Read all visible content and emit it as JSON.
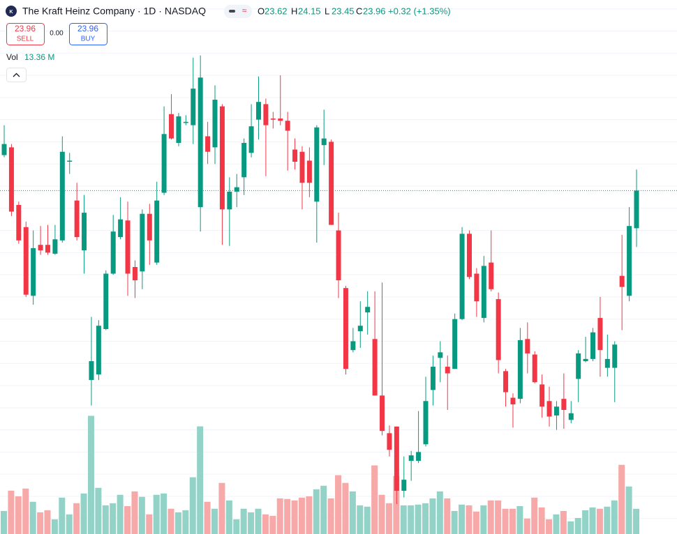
{
  "chart_data": {
    "type": "candlestick",
    "title": "The Kraft Heinz Company · 1D · NASDAQ",
    "ohlc_letters": [
      "O",
      "H",
      "L",
      "C"
    ],
    "change": "+0.32 (+1.35%)",
    "sell_label": "SELL",
    "buy_label": "BUY",
    "spread": "0.00",
    "volume_title": "Vol",
    "last_volume_label": "13.36 M",
    "open": [
      24.28,
      24.35,
      23.83,
      23.63,
      23.01,
      23.47,
      23.47,
      23.39,
      23.51,
      24.22,
      23.87,
      23.42,
      22.25,
      22.3,
      22.71,
      23.21,
      23.54,
      23.69,
      23.27,
      23.23,
      23.75,
      23.31,
      23.94,
      24.65,
      24.39,
      24.57,
      24.55,
      23.81,
      24.45,
      24.35,
      24.72,
      23.79,
      23.95,
      24.08,
      24.3,
      24.6,
      24.74,
      24.61,
      24.61,
      24.59,
      24.33,
      24.31,
      24.23,
      23.86,
      24.37,
      24.4,
      23.6,
      23.08,
      22.52,
      22.69,
      22.86,
      22.62,
      22.11,
      21.77,
      21.83,
      21.25,
      21.52,
      21.52,
      21.67,
      22.16,
      22.45,
      22.37,
      22.35,
      22.8,
      23.57,
      23.21,
      22.81,
      23.31,
      22.98,
      22.33,
      22.09,
      22.08,
      22.62,
      22.48,
      22.21,
      22.06,
      21.93,
      22.08,
      21.89,
      22.26,
      22.42,
      22.44,
      22.81,
      22.36,
      22.36,
      23.19,
      23.01,
      23.62
    ],
    "high": [
      24.55,
      24.38,
      23.86,
      23.68,
      23.6,
      23.64,
      23.65,
      23.65,
      24.45,
      24.3,
      24.03,
      23.92,
      22.82,
      22.79,
      23.24,
      23.74,
      23.9,
      23.86,
      23.33,
      23.79,
      23.84,
      24.04,
      24.72,
      24.83,
      24.66,
      24.64,
      25.16,
      25.18,
      24.58,
      24.91,
      24.74,
      24.08,
      24.11,
      24.43,
      24.74,
      24.99,
      24.79,
      24.67,
      25.0,
      24.67,
      24.43,
      24.36,
      24.35,
      24.55,
      24.69,
      24.42,
      23.76,
      23.1,
      22.72,
      22.96,
      23.05,
      23.05,
      23.13,
      21.84,
      21.83,
      21.56,
      21.61,
      21.97,
      22.28,
      22.47,
      22.6,
      22.47,
      22.85,
      23.63,
      23.6,
      23.26,
      23.37,
      23.6,
      23.04,
      22.35,
      22.13,
      22.72,
      22.77,
      22.51,
      22.3,
      22.19,
      22.06,
      22.31,
      22.06,
      22.52,
      22.64,
      22.72,
      23.0,
      22.66,
      22.6,
      23.56,
      23.81,
      24.15
    ],
    "low": [
      24.26,
      23.73,
      23.48,
      23.0,
      22.93,
      23.38,
      23.38,
      23.38,
      23.49,
      24.11,
      23.51,
      23.21,
      22.02,
      22.25,
      22.7,
      23.2,
      23.52,
      23.01,
      22.99,
      23.07,
      23.29,
      23.29,
      23.92,
      24.42,
      24.36,
      24.55,
      24.38,
      23.59,
      24.2,
      24.2,
      23.47,
      23.46,
      23.81,
      23.92,
      24.26,
      24.42,
      24.09,
      24.52,
      24.55,
      24.14,
      24.15,
      23.79,
      23.9,
      23.49,
      24.19,
      23.65,
      22.99,
      22.3,
      22.5,
      22.54,
      22.66,
      22.11,
      21.75,
      21.56,
      21.13,
      21.19,
      21.34,
      21.5,
      21.65,
      22.02,
      22.23,
      21.98,
      22.35,
      22.79,
      23.16,
      22.82,
      22.77,
      23.05,
      22.31,
      22.01,
      21.82,
      22.04,
      22.31,
      22.22,
      21.91,
      21.83,
      21.8,
      21.81,
      21.86,
      22.05,
      22.41,
      22.42,
      22.28,
      22.28,
      22.05,
      22.7,
      22.96,
      23.45
    ],
    "close": [
      24.38,
      23.77,
      23.51,
      23.02,
      23.44,
      23.42,
      23.4,
      23.52,
      24.31,
      24.23,
      23.54,
      23.76,
      22.42,
      22.74,
      23.21,
      23.59,
      23.7,
      23.21,
      23.15,
      23.75,
      23.51,
      23.87,
      24.47,
      24.43,
      24.63,
      24.58,
      24.88,
      24.98,
      24.31,
      24.78,
      23.79,
      23.95,
      23.99,
      24.39,
      24.54,
      24.76,
      24.55,
      24.6,
      24.59,
      24.5,
      24.22,
      24.03,
      24.03,
      24.53,
      24.43,
      23.65,
      23.15,
      22.35,
      22.6,
      22.74,
      22.91,
      22.11,
      21.79,
      21.62,
      21.25,
      21.35,
      21.57,
      21.6,
      22.06,
      22.37,
      22.5,
      22.31,
      22.8,
      23.57,
      23.18,
      22.96,
      23.28,
      23.07,
      22.43,
      22.14,
      22.03,
      22.61,
      22.49,
      22.23,
      22.01,
      21.92,
      22.01,
      21.98,
      21.95,
      22.49,
      22.44,
      22.68,
      22.52,
      22.44,
      22.57,
      23.09,
      23.64,
      23.96
    ],
    "volume": [
      12.2,
      23.0,
      20.0,
      24.1,
      17.1,
      11.5,
      12.6,
      7.8,
      19.3,
      10.4,
      16.3,
      21.5,
      62.7,
      24.5,
      15.2,
      16.3,
      20.8,
      14.8,
      22.6,
      19.7,
      10.4,
      20.8,
      21.5,
      13.4,
      11.5,
      12.6,
      30.1,
      57.1,
      17.1,
      13.4,
      27.1,
      17.8,
      7.8,
      13.4,
      11.5,
      13.4,
      10.4,
      9.6,
      18.9,
      18.6,
      17.8,
      19.3,
      20.0,
      23.7,
      25.6,
      18.9,
      31.2,
      27.1,
      22.6,
      15.2,
      14.5,
      36.4,
      20.8,
      16.3,
      30.8,
      15.2,
      15.2,
      15.6,
      16.3,
      18.9,
      22.6,
      18.9,
      12.2,
      15.6,
      15.2,
      11.9,
      15.2,
      17.8,
      17.8,
      13.4,
      13.4,
      14.8,
      8.2,
      19.3,
      14.1,
      7.8,
      10.4,
      12.2,
      6.7,
      8.5,
      12.6,
      14.1,
      13.4,
      14.5,
      17.8,
      36.7,
      25.2,
      13.36
    ],
    "ylim": [
      20.86,
      25.68
    ],
    "yticks": [
      21.0,
      21.2,
      21.4,
      21.6,
      21.8,
      22.0,
      22.2,
      22.4,
      22.6,
      22.8,
      23.0,
      23.2,
      23.4,
      23.6,
      23.8,
      24.0,
      24.2,
      24.4,
      24.6,
      24.8,
      25.0,
      25.2,
      25.4,
      25.6
    ],
    "vlim": [
      0,
      71
    ],
    "grid": true,
    "last_price_line": true,
    "up_color": "#089981",
    "down_color": "#f23645",
    "up_volume_color": "#93d2c6",
    "down_volume_color": "#f6a9a8",
    "buy_color": "#2962ff"
  }
}
